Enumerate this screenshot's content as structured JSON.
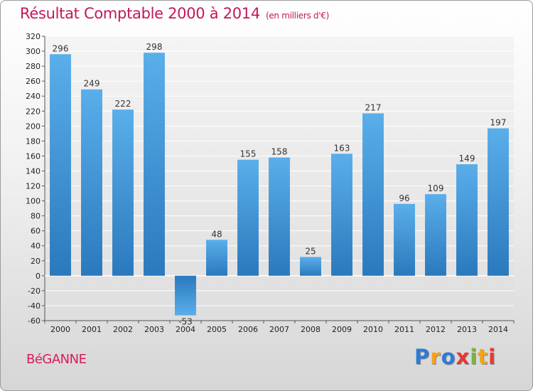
{
  "header": {
    "title": "Résultat Comptable 2000 à 2014",
    "subtitle": "(en milliers d'€)"
  },
  "footer": {
    "commune": "BéGANNE",
    "logo_letters": [
      {
        "ch": "P",
        "color": "#2e7bd6"
      },
      {
        "ch": "r",
        "color": "#f5a31a"
      },
      {
        "ch": "o",
        "color": "#2e7bd6"
      },
      {
        "ch": "x",
        "color": "#e53935"
      },
      {
        "ch": "i",
        "color": "#7cb342"
      },
      {
        "ch": "t",
        "color": "#f5a31a"
      },
      {
        "ch": "i",
        "color": "#e53935"
      }
    ]
  },
  "chart_data": {
    "type": "bar",
    "title": "Résultat Comptable 2000 à 2014",
    "subtitle": "(en milliers d'€)",
    "categories": [
      "2000",
      "2001",
      "2002",
      "2003",
      "2004",
      "2005",
      "2006",
      "2007",
      "2008",
      "2009",
      "2010",
      "2011",
      "2012",
      "2013",
      "2014"
    ],
    "values": [
      296,
      249,
      222,
      298,
      -53,
      48,
      155,
      158,
      25,
      163,
      217,
      96,
      109,
      149,
      197
    ],
    "ylim": [
      -60,
      320
    ],
    "ytick_step": 20,
    "grid": true,
    "bar_color": "#3a8fd6",
    "legend": "none"
  }
}
